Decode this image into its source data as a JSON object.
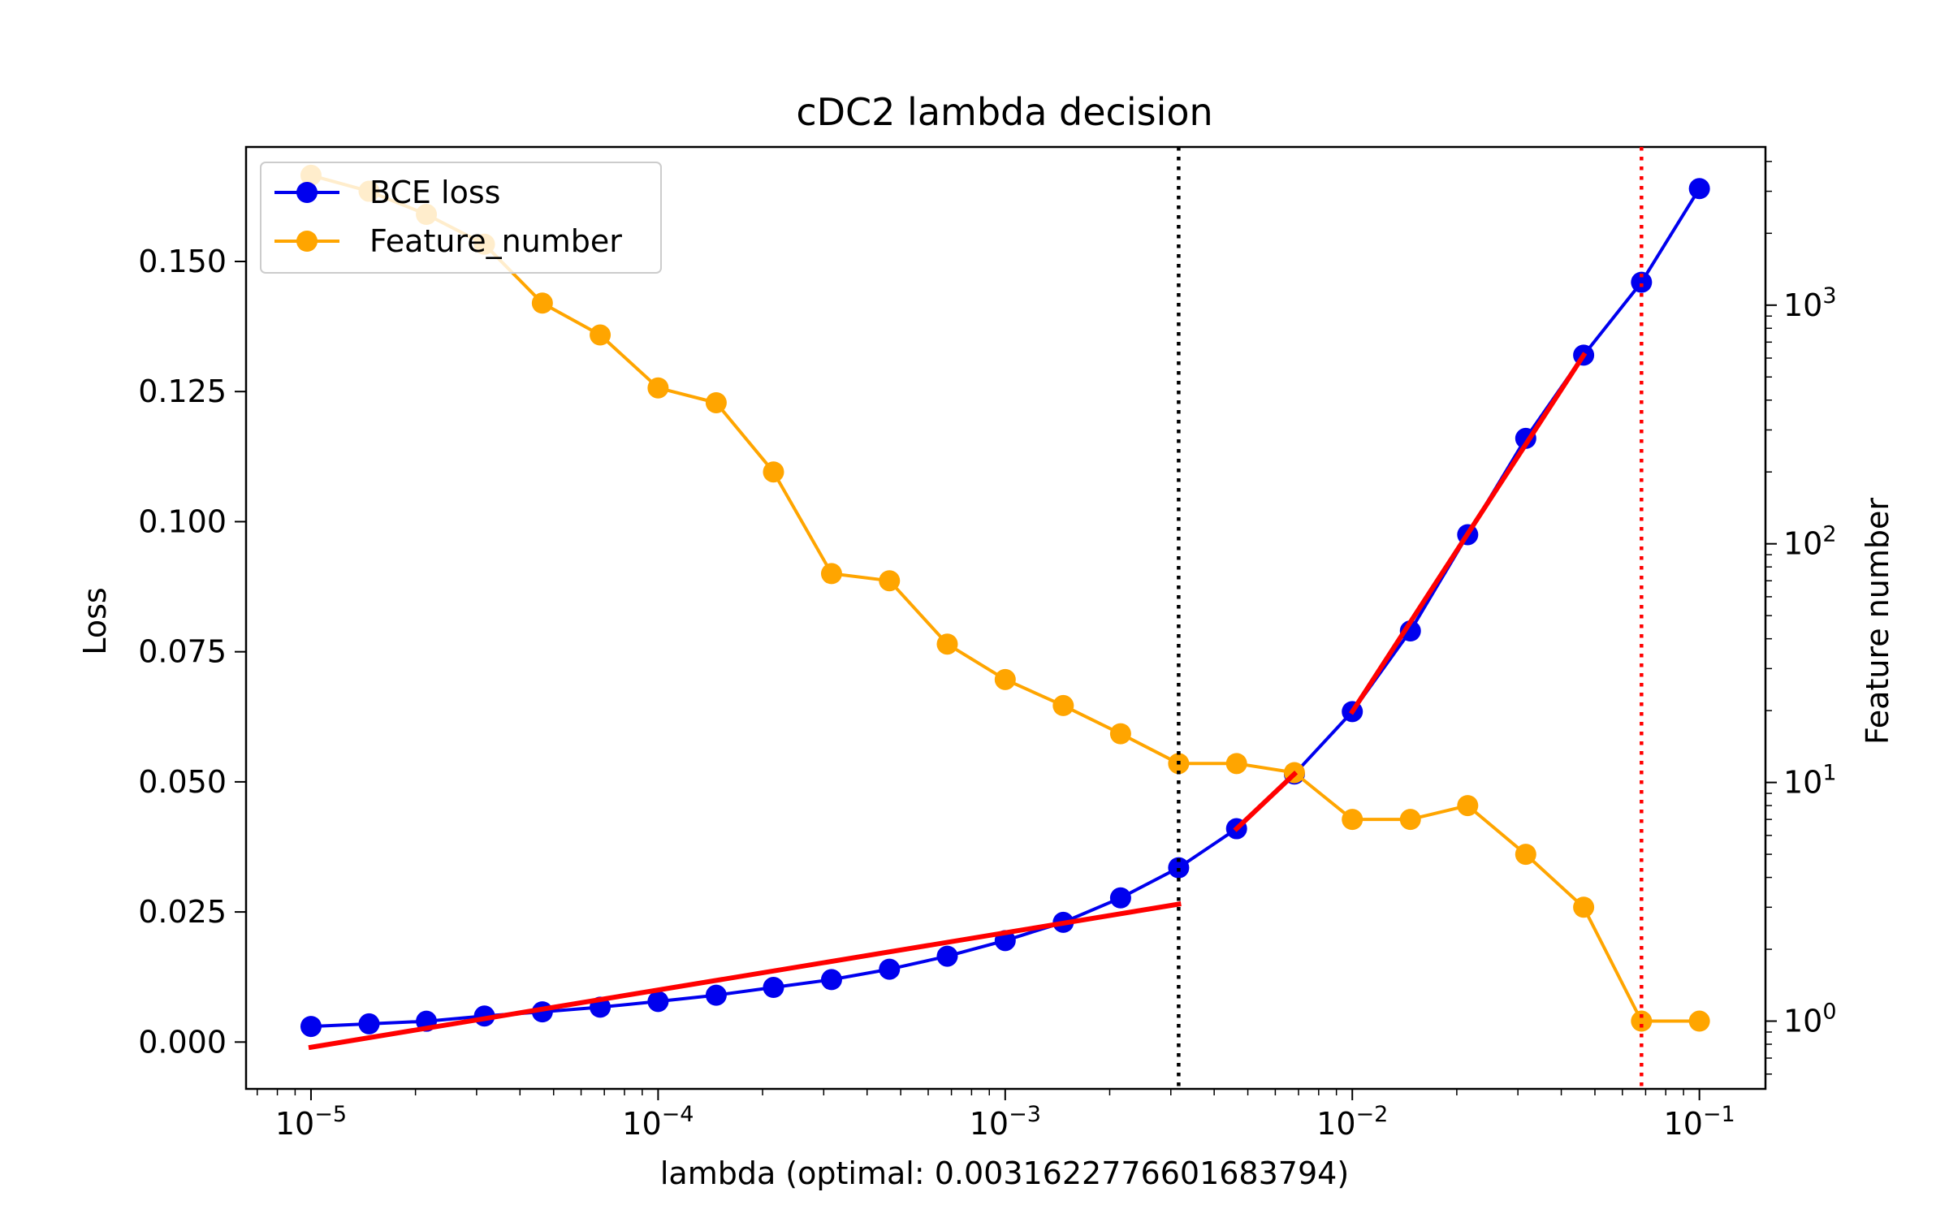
{
  "chart_data": {
    "type": "line",
    "title": "cDC2 lambda decision",
    "xlabel": "lambda (optimal: 0.0031622776601683794)",
    "ylabel_left": "Loss",
    "ylabel_right": "Feature number",
    "x_scale": "log",
    "xlim": [
      6.5e-06,
      0.155
    ],
    "ylim_left": [
      -0.009,
      0.172
    ],
    "ylim_right_log": [
      0.52,
      4600
    ],
    "x_ticks": [
      {
        "value": 1e-05,
        "base": "10",
        "exp": "−5"
      },
      {
        "value": 0.0001,
        "base": "10",
        "exp": "−4"
      },
      {
        "value": 0.001,
        "base": "10",
        "exp": "−3"
      },
      {
        "value": 0.01,
        "base": "10",
        "exp": "−2"
      },
      {
        "value": 0.1,
        "base": "10",
        "exp": "−1"
      }
    ],
    "y_left_ticks": [
      {
        "value": 0.0,
        "label": "0.000"
      },
      {
        "value": 0.025,
        "label": "0.025"
      },
      {
        "value": 0.05,
        "label": "0.050"
      },
      {
        "value": 0.075,
        "label": "0.075"
      },
      {
        "value": 0.1,
        "label": "0.100"
      },
      {
        "value": 0.125,
        "label": "0.125"
      },
      {
        "value": 0.15,
        "label": "0.150"
      }
    ],
    "y_right_ticks": [
      {
        "value": 1,
        "base": "10",
        "exp": "0"
      },
      {
        "value": 10,
        "base": "10",
        "exp": "1"
      },
      {
        "value": 100,
        "base": "10",
        "exp": "2"
      },
      {
        "value": 1000,
        "base": "10",
        "exp": "3"
      }
    ],
    "x": [
      1e-05,
      1.47e-05,
      2.15e-05,
      3.16e-05,
      4.64e-05,
      6.81e-05,
      0.0001,
      0.000147,
      0.000215,
      0.000316,
      0.000464,
      0.000681,
      0.001,
      0.00147,
      0.00215,
      0.00316,
      0.00464,
      0.00681,
      0.01,
      0.0147,
      0.0215,
      0.0316,
      0.0464,
      0.0681,
      0.1
    ],
    "series": [
      {
        "name": "BCE loss",
        "axis": "left",
        "color": "#0000ee",
        "values": [
          0.003,
          0.0035,
          0.004,
          0.005,
          0.0058,
          0.0067,
          0.0078,
          0.009,
          0.0105,
          0.012,
          0.014,
          0.0165,
          0.0195,
          0.023,
          0.0277,
          0.0335,
          0.041,
          0.0515,
          0.0635,
          0.079,
          0.0975,
          0.116,
          0.132,
          0.146,
          0.164
        ]
      },
      {
        "name": "Feature_number",
        "axis": "right",
        "color": "#ffa500",
        "values": [
          3500,
          3000,
          2400,
          1800,
          1020,
          750,
          450,
          390,
          200,
          75,
          70,
          38,
          27,
          21,
          16,
          12,
          12,
          11,
          7,
          7,
          8,
          5,
          3,
          1,
          1
        ]
      }
    ],
    "fit_lines": [
      {
        "color": "#ff0000",
        "x": [
          1e-05,
          0.00316
        ],
        "y": [
          -0.001,
          0.0265
        ]
      },
      {
        "color": "#ff0000",
        "x": [
          0.00464,
          0.00681
        ],
        "y": [
          0.041,
          0.0515
        ]
      },
      {
        "color": "#ff0000",
        "x": [
          0.01,
          0.0464
        ],
        "y": [
          0.0635,
          0.132
        ]
      }
    ],
    "vlines": [
      {
        "x": 0.00316,
        "color": "#000000",
        "style": "dotted"
      },
      {
        "x": 0.0681,
        "color": "#ff0000",
        "style": "dotted"
      }
    ],
    "legend_position": "upper-left"
  }
}
